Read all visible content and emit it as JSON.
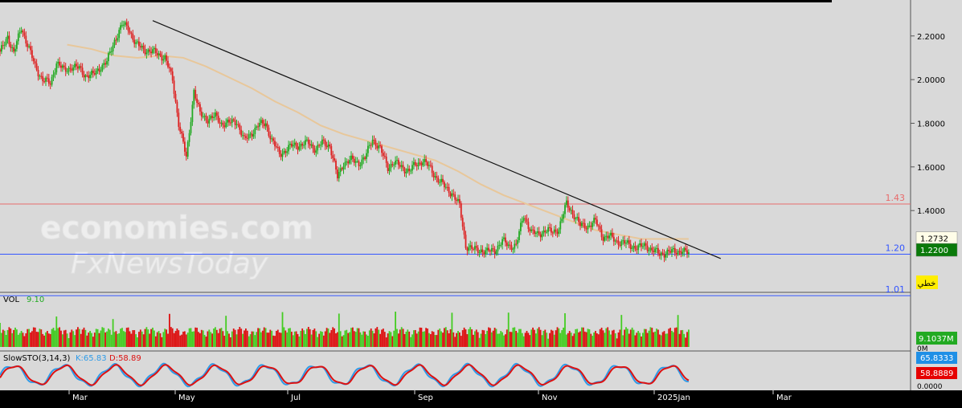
{
  "chart_data": [
    {
      "type": "candlestick",
      "name": "price",
      "ylim": [
        1.04,
        2.35
      ],
      "y_ticks": [
        "2.2000",
        "2.0000",
        "1.8000",
        "1.6000",
        "1.4000"
      ],
      "y_tick_values": [
        2.2,
        2.0,
        1.8,
        1.6,
        1.4
      ],
      "x_labels": [
        "Mar",
        "May",
        "Jul",
        "Sep",
        "Nov",
        "2025Jan",
        "Mar"
      ],
      "close_path": [
        [
          0,
          2.12
        ],
        [
          5,
          2.2
        ],
        [
          9,
          2.12
        ],
        [
          14,
          2.24
        ],
        [
          19,
          2.14
        ],
        [
          23,
          2.06
        ],
        [
          28,
          2.0
        ],
        [
          33,
          1.98
        ],
        [
          37,
          2.08
        ],
        [
          42,
          2.04
        ],
        [
          47,
          2.06
        ],
        [
          52,
          2.05
        ],
        [
          56,
          2.02
        ],
        [
          61,
          2.02
        ],
        [
          66,
          2.06
        ],
        [
          70,
          2.08
        ],
        [
          75,
          2.18
        ],
        [
          80,
          2.25
        ],
        [
          84,
          2.24
        ],
        [
          89,
          2.16
        ],
        [
          94,
          2.14
        ],
        [
          98,
          2.13
        ],
        [
          103,
          2.12
        ],
        [
          108,
          2.1
        ],
        [
          113,
          2.0
        ],
        [
          117,
          1.8
        ],
        [
          122,
          1.64
        ],
        [
          127,
          1.95
        ],
        [
          131,
          1.84
        ],
        [
          136,
          1.82
        ],
        [
          141,
          1.83
        ],
        [
          145,
          1.8
        ],
        [
          150,
          1.8
        ],
        [
          155,
          1.81
        ],
        [
          160,
          1.72
        ],
        [
          164,
          1.75
        ],
        [
          169,
          1.79
        ],
        [
          174,
          1.8
        ],
        [
          178,
          1.72
        ],
        [
          183,
          1.66
        ],
        [
          188,
          1.68
        ],
        [
          192,
          1.7
        ],
        [
          197,
          1.7
        ],
        [
          202,
          1.71
        ],
        [
          207,
          1.68
        ],
        [
          211,
          1.71
        ],
        [
          216,
          1.7
        ],
        [
          221,
          1.55
        ],
        [
          225,
          1.62
        ],
        [
          230,
          1.63
        ],
        [
          235,
          1.62
        ],
        [
          239,
          1.64
        ],
        [
          244,
          1.73
        ],
        [
          249,
          1.68
        ],
        [
          254,
          1.6
        ],
        [
          258,
          1.62
        ],
        [
          263,
          1.6
        ],
        [
          268,
          1.58
        ],
        [
          272,
          1.61
        ],
        [
          277,
          1.63
        ],
        [
          282,
          1.59
        ],
        [
          286,
          1.55
        ],
        [
          291,
          1.51
        ],
        [
          296,
          1.48
        ],
        [
          301,
          1.42
        ],
        [
          305,
          1.24
        ],
        [
          310,
          1.22
        ],
        [
          315,
          1.22
        ],
        [
          319,
          1.21
        ],
        [
          324,
          1.22
        ],
        [
          329,
          1.26
        ],
        [
          333,
          1.24
        ],
        [
          338,
          1.24
        ],
        [
          343,
          1.38
        ],
        [
          348,
          1.3
        ],
        [
          352,
          1.29
        ],
        [
          357,
          1.31
        ],
        [
          362,
          1.3
        ],
        [
          366,
          1.32
        ],
        [
          371,
          1.43
        ],
        [
          376,
          1.38
        ],
        [
          380,
          1.33
        ],
        [
          385,
          1.33
        ],
        [
          390,
          1.35
        ],
        [
          395,
          1.28
        ],
        [
          399,
          1.28
        ],
        [
          404,
          1.26
        ],
        [
          409,
          1.25
        ],
        [
          413,
          1.24
        ],
        [
          418,
          1.23
        ],
        [
          423,
          1.24
        ],
        [
          427,
          1.22
        ],
        [
          432,
          1.2
        ],
        [
          437,
          1.21
        ],
        [
          442,
          1.21
        ],
        [
          446,
          1.22
        ],
        [
          451,
          1.2
        ]
      ],
      "ma_path": [
        [
          44,
          2.16
        ],
        [
          60,
          2.14
        ],
        [
          75,
          2.11
        ],
        [
          90,
          2.1
        ],
        [
          105,
          2.11
        ],
        [
          120,
          2.1
        ],
        [
          135,
          2.06
        ],
        [
          150,
          2.01
        ],
        [
          165,
          1.96
        ],
        [
          180,
          1.9
        ],
        [
          195,
          1.85
        ],
        [
          210,
          1.79
        ],
        [
          225,
          1.75
        ],
        [
          240,
          1.72
        ],
        [
          255,
          1.69
        ],
        [
          270,
          1.66
        ],
        [
          285,
          1.63
        ],
        [
          300,
          1.58
        ],
        [
          315,
          1.52
        ],
        [
          330,
          1.47
        ],
        [
          345,
          1.43
        ],
        [
          360,
          1.39
        ],
        [
          375,
          1.35
        ],
        [
          390,
          1.31
        ],
        [
          405,
          1.29
        ],
        [
          420,
          1.27
        ],
        [
          435,
          1.27
        ],
        [
          451,
          1.27
        ]
      ],
      "ma_color": "#e8c79a",
      "up_color": "#22aa22",
      "down_color": "#dd2222",
      "trendline": {
        "from": [
          100,
          2.27
        ],
        "to": [
          472,
          1.18
        ],
        "color": "#111111"
      },
      "levels": [
        {
          "label": "1.43",
          "value": 1.43,
          "color": "#e86a6a"
        },
        {
          "label": "1.20",
          "value": 1.2,
          "color": "#3355ff"
        },
        {
          "label": "1.01",
          "value": 1.01,
          "color": "#3355ff"
        }
      ],
      "badges": [
        {
          "text": "1.2732",
          "value": 1.2732,
          "bg": "#fffde8",
          "fg": "#000000"
        },
        {
          "text": "1.2200",
          "value": 1.22,
          "bg": "#0a7a0a",
          "fg": "#ffffff"
        }
      ],
      "draw_tool_label": "خطي"
    },
    {
      "type": "bar",
      "name": "volume",
      "label": "VOL",
      "value_label": "9.10",
      "badge": "9.1037M",
      "partial_label": "0M"
    },
    {
      "type": "line",
      "name": "slow-stochastic",
      "label": "SlowSTO(3,14,3)",
      "k_label": "K:65.83",
      "d_label": "D:58.89",
      "k_color": "#2e9be8",
      "d_color": "#dd1111",
      "ylim": [
        0,
        100
      ],
      "k_badge": "65.8333",
      "d_badge": "58.8889",
      "bottom_tick": "0.0000"
    }
  ],
  "watermark": {
    "line1": "economies.com",
    "line2": "FxNewsToday"
  }
}
